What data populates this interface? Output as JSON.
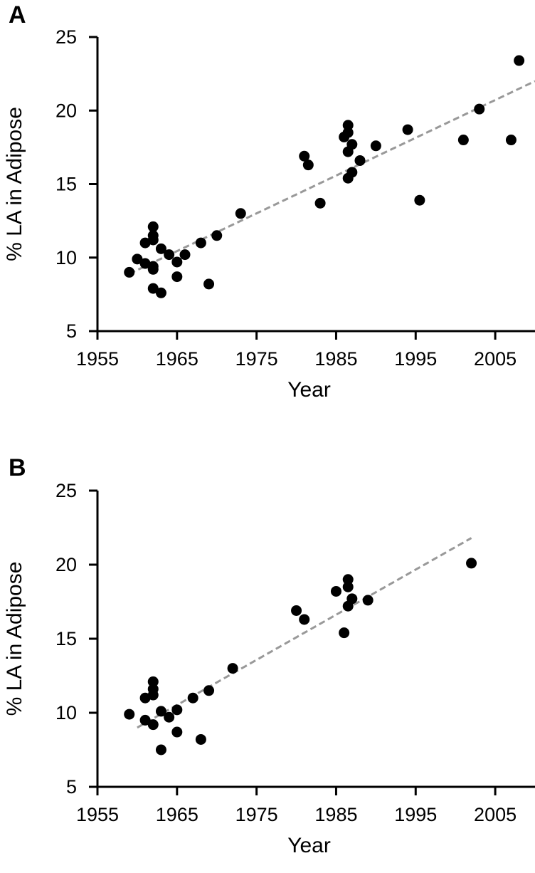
{
  "chart_data": [
    {
      "panel_label": "A",
      "type": "scatter",
      "xlabel": "Year",
      "ylabel": "% LA in Adipose",
      "xlim": [
        1955,
        2010
      ],
      "ylim": [
        5,
        25
      ],
      "xticks": [
        "1955",
        "1965",
        "1975",
        "1985",
        "1995",
        "2005"
      ],
      "yticks": [
        "5",
        "10",
        "15",
        "20",
        "25"
      ],
      "grid": false,
      "legend": "none",
      "marker_color": "#000000",
      "trendline": {
        "style": "dashed",
        "color": "#999999",
        "x": [
          1959,
          2010
        ],
        "y": [
          8.9,
          22.0
        ]
      },
      "points": [
        {
          "x": 1959,
          "y": 9.0
        },
        {
          "x": 1960,
          "y": 9.9
        },
        {
          "x": 1961,
          "y": 11.0
        },
        {
          "x": 1961,
          "y": 9.6
        },
        {
          "x": 1962,
          "y": 12.1
        },
        {
          "x": 1962,
          "y": 11.5
        },
        {
          "x": 1962,
          "y": 11.2
        },
        {
          "x": 1962,
          "y": 9.4
        },
        {
          "x": 1962,
          "y": 9.2
        },
        {
          "x": 1962,
          "y": 7.9
        },
        {
          "x": 1963,
          "y": 10.6
        },
        {
          "x": 1963,
          "y": 7.6
        },
        {
          "x": 1964,
          "y": 10.2
        },
        {
          "x": 1965,
          "y": 9.7
        },
        {
          "x": 1965,
          "y": 8.7
        },
        {
          "x": 1966,
          "y": 10.2
        },
        {
          "x": 1968,
          "y": 11.0
        },
        {
          "x": 1969,
          "y": 8.2
        },
        {
          "x": 1970,
          "y": 11.5
        },
        {
          "x": 1973,
          "y": 13.0
        },
        {
          "x": 1981,
          "y": 16.9
        },
        {
          "x": 1981.5,
          "y": 16.3
        },
        {
          "x": 1983,
          "y": 13.7
        },
        {
          "x": 1986,
          "y": 18.2
        },
        {
          "x": 1986.5,
          "y": 19.0
        },
        {
          "x": 1986.5,
          "y": 18.5
        },
        {
          "x": 1986.5,
          "y": 17.2
        },
        {
          "x": 1986.5,
          "y": 15.4
        },
        {
          "x": 1987,
          "y": 17.7
        },
        {
          "x": 1987,
          "y": 15.8
        },
        {
          "x": 1988,
          "y": 16.6
        },
        {
          "x": 1990,
          "y": 17.6
        },
        {
          "x": 1994,
          "y": 18.7
        },
        {
          "x": 1995.5,
          "y": 13.9
        },
        {
          "x": 2001,
          "y": 18.0
        },
        {
          "x": 2003,
          "y": 20.1
        },
        {
          "x": 2007,
          "y": 18.0
        },
        {
          "x": 2008,
          "y": 23.4
        }
      ]
    },
    {
      "panel_label": "B",
      "type": "scatter",
      "xlabel": "Year",
      "ylabel": "% LA in Adipose",
      "xlim": [
        1955,
        2010
      ],
      "ylim": [
        5,
        25
      ],
      "xticks": [
        "1955",
        "1965",
        "1975",
        "1985",
        "1995",
        "2005"
      ],
      "yticks": [
        "5",
        "10",
        "15",
        "20",
        "25"
      ],
      "grid": false,
      "legend": "none",
      "marker_color": "#000000",
      "trendline": {
        "style": "dashed",
        "color": "#999999",
        "x": [
          1960,
          2002
        ],
        "y": [
          9.0,
          21.8
        ]
      },
      "points": [
        {
          "x": 1959,
          "y": 9.9
        },
        {
          "x": 1961,
          "y": 11.0
        },
        {
          "x": 1961,
          "y": 9.5
        },
        {
          "x": 1962,
          "y": 12.1
        },
        {
          "x": 1962,
          "y": 11.6
        },
        {
          "x": 1962,
          "y": 11.2
        },
        {
          "x": 1962,
          "y": 9.2
        },
        {
          "x": 1963,
          "y": 10.1
        },
        {
          "x": 1963,
          "y": 7.5
        },
        {
          "x": 1964,
          "y": 9.7
        },
        {
          "x": 1965,
          "y": 10.2
        },
        {
          "x": 1965,
          "y": 8.7
        },
        {
          "x": 1967,
          "y": 11.0
        },
        {
          "x": 1968,
          "y": 8.2
        },
        {
          "x": 1969,
          "y": 11.5
        },
        {
          "x": 1972,
          "y": 13.0
        },
        {
          "x": 1980,
          "y": 16.9
        },
        {
          "x": 1981,
          "y": 16.3
        },
        {
          "x": 1985,
          "y": 18.2
        },
        {
          "x": 1986,
          "y": 15.4
        },
        {
          "x": 1986.5,
          "y": 19.0
        },
        {
          "x": 1986.5,
          "y": 18.5
        },
        {
          "x": 1986.5,
          "y": 17.2
        },
        {
          "x": 1987,
          "y": 17.7
        },
        {
          "x": 1989,
          "y": 17.6
        },
        {
          "x": 2002,
          "y": 20.1
        }
      ]
    }
  ]
}
